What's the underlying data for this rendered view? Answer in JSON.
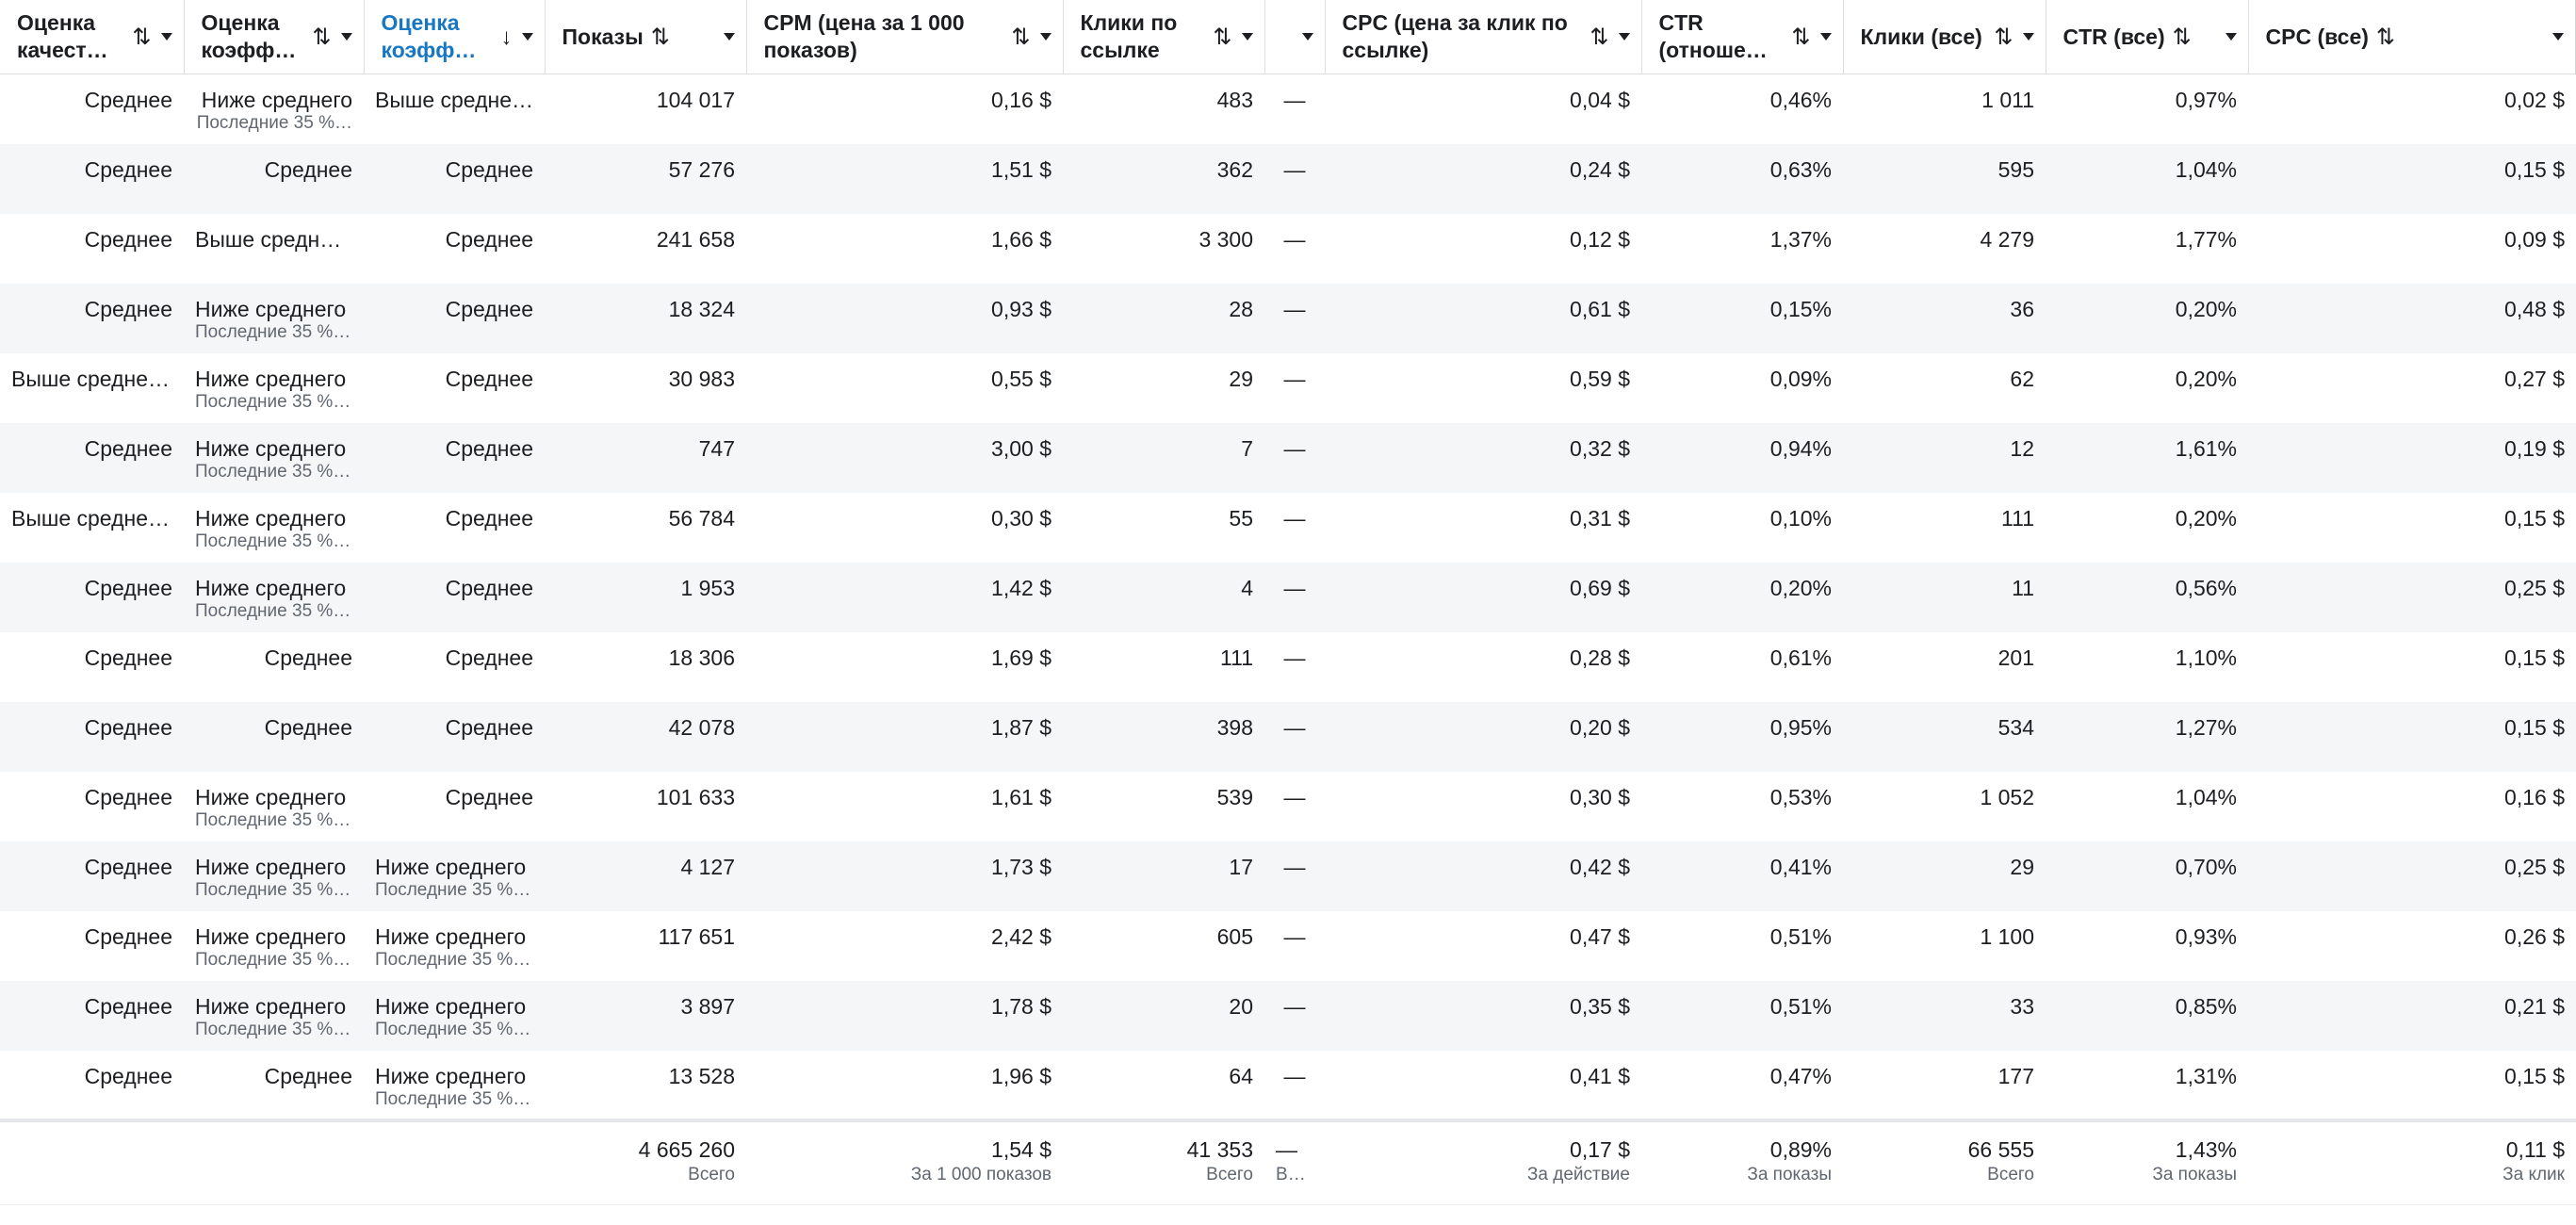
{
  "columns": [
    {
      "label": "Оценка качест…",
      "sort": "⇅",
      "active": false
    },
    {
      "label": "Оценка коэфф…",
      "sort": "⇅",
      "active": false
    },
    {
      "label": "Оценка коэфф…",
      "sort": "↓",
      "active": true
    },
    {
      "label": "Показы",
      "sort": "⇅",
      "active": false
    },
    {
      "label": "CPM (цена за 1 000 показов)",
      "sort": "⇅",
      "active": false
    },
    {
      "label": "Клики по ссылке",
      "sort": "⇅",
      "active": false
    },
    {
      "label": "",
      "sort": "",
      "active": false
    },
    {
      "label": "CPC (цена за клик по ссылке)",
      "sort": "⇅",
      "active": false
    },
    {
      "label": "CTR (отноше…",
      "sort": "⇅",
      "active": false
    },
    {
      "label": "Клики (все)",
      "sort": "⇅",
      "active": false
    },
    {
      "label": "CTR (все)",
      "sort": "⇅",
      "active": false
    },
    {
      "label": "CPC (все)",
      "sort": "⇅",
      "active": false
    }
  ],
  "rows": [
    {
      "quality": {
        "v": "Среднее"
      },
      "rank1": {
        "v": "Ниже среднего",
        "sub": "Последние 35 %…"
      },
      "rank2": {
        "v": "Выше средне…"
      },
      "impressions": "104 017",
      "cpm": "0,16 $",
      "link_clicks": "483",
      "extra": "—",
      "cpc_link": "0,04 $",
      "ctr_link": "0,46%",
      "clicks_all": "1 011",
      "ctr_all": "0,97%",
      "cpc_all": "0,02 $"
    },
    {
      "quality": {
        "v": "Среднее"
      },
      "rank1": {
        "v": "Среднее"
      },
      "rank2": {
        "v": "Среднее"
      },
      "impressions": "57 276",
      "cpm": "1,51 $",
      "link_clicks": "362",
      "extra": "—",
      "cpc_link": "0,24 $",
      "ctr_link": "0,63%",
      "clicks_all": "595",
      "ctr_all": "1,04%",
      "cpc_all": "0,15 $"
    },
    {
      "quality": {
        "v": "Среднее"
      },
      "rank1": {
        "v": "Выше средне…"
      },
      "rank2": {
        "v": "Среднее"
      },
      "impressions": "241 658",
      "cpm": "1,66 $",
      "link_clicks": "3 300",
      "extra": "—",
      "cpc_link": "0,12 $",
      "ctr_link": "1,37%",
      "clicks_all": "4 279",
      "ctr_all": "1,77%",
      "cpc_all": "0,09 $"
    },
    {
      "quality": {
        "v": "Среднее"
      },
      "rank1": {
        "v": "Ниже среднего",
        "sub": "Последние 35 %…"
      },
      "rank2": {
        "v": "Среднее"
      },
      "impressions": "18 324",
      "cpm": "0,93 $",
      "link_clicks": "28",
      "extra": "—",
      "cpc_link": "0,61 $",
      "ctr_link": "0,15%",
      "clicks_all": "36",
      "ctr_all": "0,20%",
      "cpc_all": "0,48 $"
    },
    {
      "quality": {
        "v": "Выше средне…"
      },
      "rank1": {
        "v": "Ниже среднего",
        "sub": "Последние 35 %…"
      },
      "rank2": {
        "v": "Среднее"
      },
      "impressions": "30 983",
      "cpm": "0,55 $",
      "link_clicks": "29",
      "extra": "—",
      "cpc_link": "0,59 $",
      "ctr_link": "0,09%",
      "clicks_all": "62",
      "ctr_all": "0,20%",
      "cpc_all": "0,27 $"
    },
    {
      "quality": {
        "v": "Среднее"
      },
      "rank1": {
        "v": "Ниже среднего",
        "sub": "Последние 35 %…"
      },
      "rank2": {
        "v": "Среднее"
      },
      "impressions": "747",
      "cpm": "3,00 $",
      "link_clicks": "7",
      "extra": "—",
      "cpc_link": "0,32 $",
      "ctr_link": "0,94%",
      "clicks_all": "12",
      "ctr_all": "1,61%",
      "cpc_all": "0,19 $"
    },
    {
      "quality": {
        "v": "Выше средне…"
      },
      "rank1": {
        "v": "Ниже среднего",
        "sub": "Последние 35 %…"
      },
      "rank2": {
        "v": "Среднее"
      },
      "impressions": "56 784",
      "cpm": "0,30 $",
      "link_clicks": "55",
      "extra": "—",
      "cpc_link": "0,31 $",
      "ctr_link": "0,10%",
      "clicks_all": "111",
      "ctr_all": "0,20%",
      "cpc_all": "0,15 $"
    },
    {
      "quality": {
        "v": "Среднее"
      },
      "rank1": {
        "v": "Ниже среднего",
        "sub": "Последние 35 %…"
      },
      "rank2": {
        "v": "Среднее"
      },
      "impressions": "1 953",
      "cpm": "1,42 $",
      "link_clicks": "4",
      "extra": "—",
      "cpc_link": "0,69 $",
      "ctr_link": "0,20%",
      "clicks_all": "11",
      "ctr_all": "0,56%",
      "cpc_all": "0,25 $"
    },
    {
      "quality": {
        "v": "Среднее"
      },
      "rank1": {
        "v": "Среднее"
      },
      "rank2": {
        "v": "Среднее"
      },
      "impressions": "18 306",
      "cpm": "1,69 $",
      "link_clicks": "111",
      "extra": "—",
      "cpc_link": "0,28 $",
      "ctr_link": "0,61%",
      "clicks_all": "201",
      "ctr_all": "1,10%",
      "cpc_all": "0,15 $"
    },
    {
      "quality": {
        "v": "Среднее"
      },
      "rank1": {
        "v": "Среднее"
      },
      "rank2": {
        "v": "Среднее"
      },
      "impressions": "42 078",
      "cpm": "1,87 $",
      "link_clicks": "398",
      "extra": "—",
      "cpc_link": "0,20 $",
      "ctr_link": "0,95%",
      "clicks_all": "534",
      "ctr_all": "1,27%",
      "cpc_all": "0,15 $"
    },
    {
      "quality": {
        "v": "Среднее"
      },
      "rank1": {
        "v": "Ниже среднего",
        "sub": "Последние 35 %…"
      },
      "rank2": {
        "v": "Среднее"
      },
      "impressions": "101 633",
      "cpm": "1,61 $",
      "link_clicks": "539",
      "extra": "—",
      "cpc_link": "0,30 $",
      "ctr_link": "0,53%",
      "clicks_all": "1 052",
      "ctr_all": "1,04%",
      "cpc_all": "0,16 $"
    },
    {
      "quality": {
        "v": "Среднее"
      },
      "rank1": {
        "v": "Ниже среднего",
        "sub": "Последние 35 %…"
      },
      "rank2": {
        "v": "Ниже среднего",
        "sub": "Последние 35 %…"
      },
      "impressions": "4 127",
      "cpm": "1,73 $",
      "link_clicks": "17",
      "extra": "—",
      "cpc_link": "0,42 $",
      "ctr_link": "0,41%",
      "clicks_all": "29",
      "ctr_all": "0,70%",
      "cpc_all": "0,25 $"
    },
    {
      "quality": {
        "v": "Среднее"
      },
      "rank1": {
        "v": "Ниже среднего",
        "sub": "Последние 35 %…"
      },
      "rank2": {
        "v": "Ниже среднего",
        "sub": "Последние 35 %…"
      },
      "impressions": "117 651",
      "cpm": "2,42 $",
      "link_clicks": "605",
      "extra": "—",
      "cpc_link": "0,47 $",
      "ctr_link": "0,51%",
      "clicks_all": "1 100",
      "ctr_all": "0,93%",
      "cpc_all": "0,26 $"
    },
    {
      "quality": {
        "v": "Среднее"
      },
      "rank1": {
        "v": "Ниже среднего",
        "sub": "Последние 35 %…"
      },
      "rank2": {
        "v": "Ниже среднего",
        "sub": "Последние 35 %…"
      },
      "impressions": "3 897",
      "cpm": "1,78 $",
      "link_clicks": "20",
      "extra": "—",
      "cpc_link": "0,35 $",
      "ctr_link": "0,51%",
      "clicks_all": "33",
      "ctr_all": "0,85%",
      "cpc_all": "0,21 $"
    },
    {
      "quality": {
        "v": "Среднее"
      },
      "rank1": {
        "v": "Среднее"
      },
      "rank2": {
        "v": "Ниже среднего",
        "sub": "Последние 35 %…"
      },
      "impressions": "13 528",
      "cpm": "1,96 $",
      "link_clicks": "64",
      "extra": "—",
      "cpc_link": "0,41 $",
      "ctr_link": "0,47%",
      "clicks_all": "177",
      "ctr_all": "1,31%",
      "cpc_all": "0,15 $"
    }
  ],
  "totals": {
    "impressions": {
      "v": "4 665 260",
      "sub": "Всего"
    },
    "cpm": {
      "v": "1,54 $",
      "sub": "За 1 000 показов"
    },
    "link_clicks": {
      "v": "41 353",
      "sub": "Всего"
    },
    "extra": {
      "v": "—",
      "sub": "Вс…"
    },
    "cpc_link": {
      "v": "0,17 $",
      "sub": "За действие"
    },
    "ctr_link": {
      "v": "0,89%",
      "sub": "За показы"
    },
    "clicks_all": {
      "v": "66 555",
      "sub": "Всего"
    },
    "ctr_all": {
      "v": "1,43%",
      "sub": "За показы"
    },
    "cpc_all": {
      "v": "0,11 $",
      "sub": "За клик"
    }
  }
}
